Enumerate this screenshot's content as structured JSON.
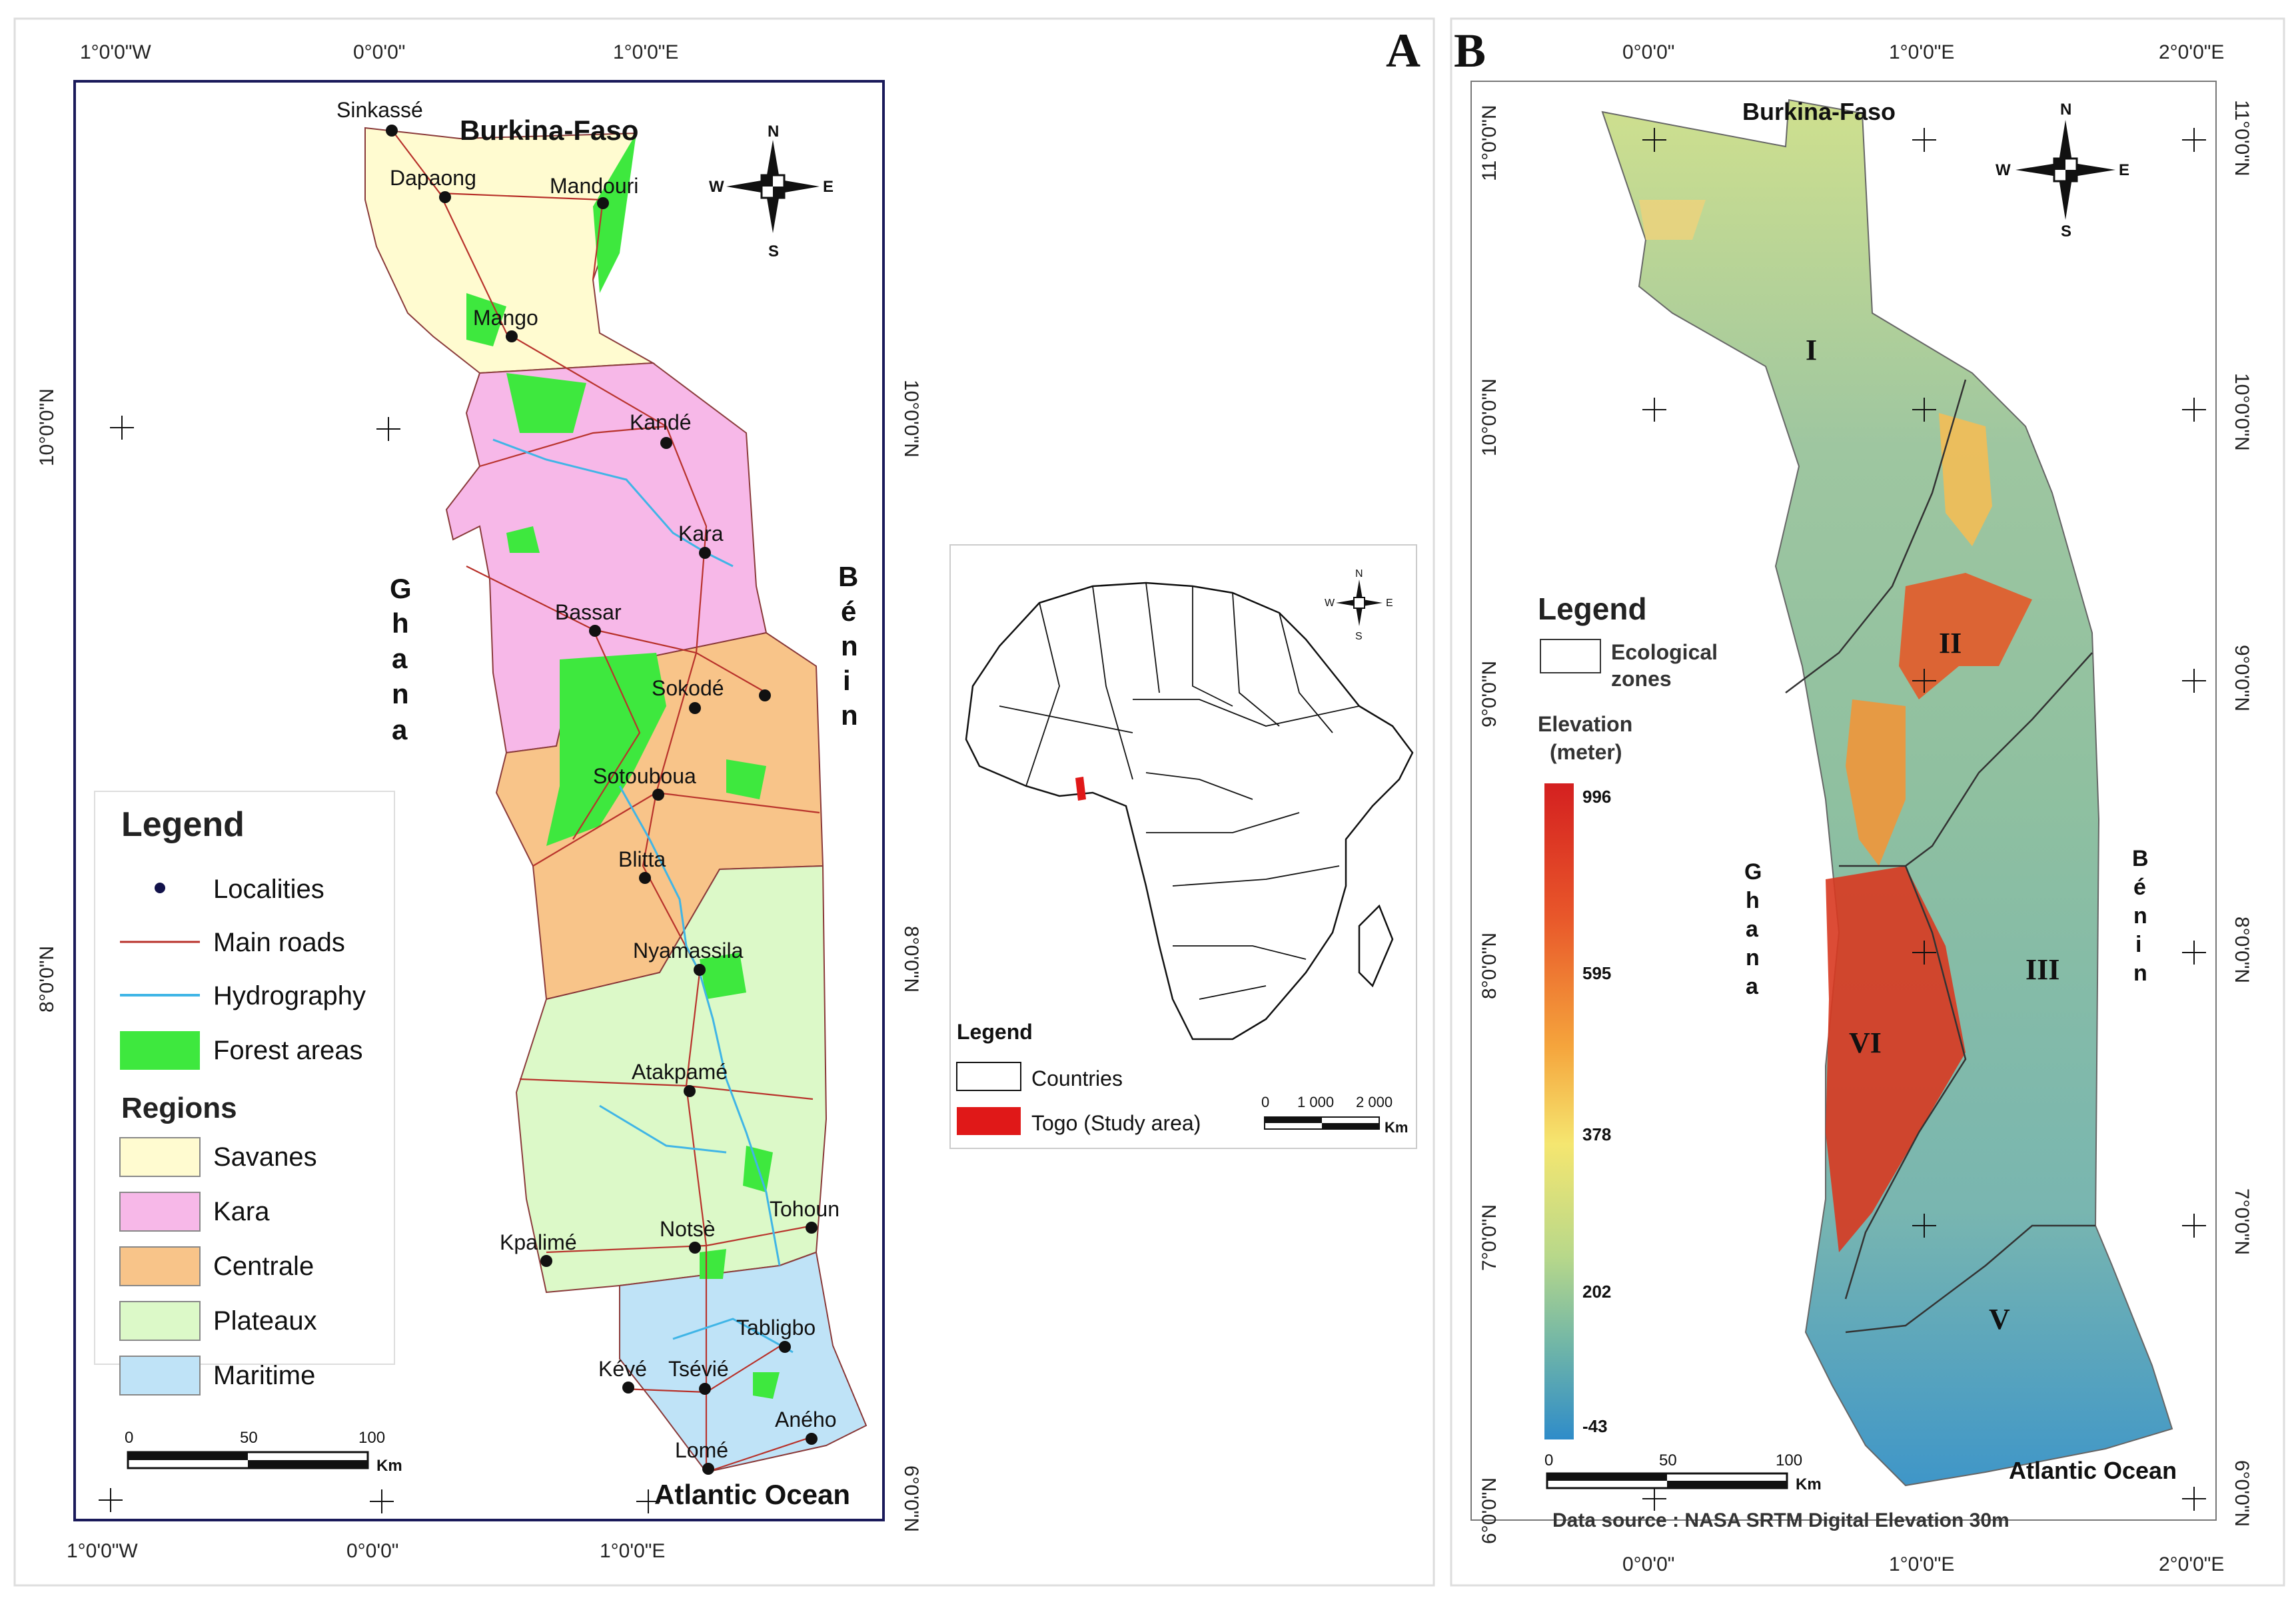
{
  "panels": {
    "a": "A",
    "b": "B"
  },
  "panel_a": {
    "top_coords": [
      "1°0'0\"W",
      "0°0'0\"",
      "1°0'0\"E"
    ],
    "bottom_coords": [
      "1°0'0\"W",
      "0°0'0\"",
      "1°0'0\"E"
    ],
    "left_coords": [
      "10°0'0\"N",
      "8°0'0\"N"
    ],
    "right_coords": [
      "10°0'0\"N",
      "8°0'0\"N",
      "6°0'0\"N"
    ],
    "countries": {
      "north": "Burkina-Faso",
      "west": [
        "G",
        "h",
        "a",
        "n",
        "a"
      ],
      "east": [
        "B",
        "é",
        "n",
        "i",
        "n"
      ],
      "south": "Atlantic Ocean"
    },
    "localities": [
      "Sinkassé",
      "Dapaong",
      "Mandouri",
      "Mango",
      "Kandé",
      "Kara",
      "Bassar",
      "Sokodé",
      "Sotouboua",
      "Blitta",
      "Nyamassila",
      "Atakpamé",
      "Tohoun",
      "Kpalimé",
      "Notsè",
      "Tabligbo",
      "Kévé",
      "Tsévié",
      "Aného",
      "Lomé"
    ],
    "compass": {
      "n": "N",
      "s": "S",
      "e": "E",
      "w": "W"
    },
    "legend": {
      "title": "Legend",
      "items": [
        "Localities",
        "Main roads",
        "Hydrography",
        "Forest areas"
      ],
      "regions_title": "Regions",
      "regions": [
        {
          "name": "Savanes",
          "color": "#fffbd0"
        },
        {
          "name": "Kara",
          "color": "#f7b8e8"
        },
        {
          "name": "Centrale",
          "color": "#f8c489"
        },
        {
          "name": "Plateaux",
          "color": "#dcf9c8"
        },
        {
          "name": "Maritime",
          "color": "#bfe3f7"
        }
      ]
    },
    "scale": {
      "ticks": [
        "0",
        "50",
        "100"
      ],
      "unit": "Km"
    }
  },
  "inset": {
    "legend_title": "Legend",
    "items": [
      "Countries",
      "Togo (Study area)"
    ],
    "scale": {
      "ticks": [
        "0",
        "1 000",
        "2 000"
      ],
      "unit": "Km"
    },
    "compass": {
      "n": "N",
      "s": "S",
      "e": "E",
      "w": "W"
    }
  },
  "panel_b": {
    "top_coords": [
      "0°0'0\"",
      "1°0'0\"E",
      "2°0'0\"E"
    ],
    "bottom_coords": [
      "0°0'0\"",
      "1°0'0\"E",
      "2°0'0\"E"
    ],
    "left_coords": [
      "11°0'0\"N",
      "10°0'0\"N",
      "9°0'0\"N",
      "8°0'0\"N",
      "7°0'0\"N",
      "6°0'0\"N"
    ],
    "right_coords": [
      "11°0'0\"N",
      "10°0'0\"N",
      "9°0'0\"N",
      "8°0'0\"N",
      "7°0'0\"N",
      "6°0'0\"N"
    ],
    "countries": {
      "north": "Burkina-Faso",
      "west": [
        "G",
        "h",
        "a",
        "n",
        "a"
      ],
      "east": [
        "B",
        "é",
        "n",
        "i",
        "n"
      ],
      "south": "Atlantic Ocean"
    },
    "zones": [
      "I",
      "II",
      "III",
      "V",
      "VI"
    ],
    "compass": {
      "n": "N",
      "s": "S",
      "e": "E",
      "w": "W"
    },
    "legend": {
      "title": "Legend",
      "zones_label": [
        "Ecological",
        "zones"
      ],
      "elev_title": [
        "Elevation",
        "(meter)"
      ],
      "ticks": [
        "996",
        "595",
        "378",
        "202",
        "-43"
      ]
    },
    "scale": {
      "ticks": [
        "0",
        "50",
        "100"
      ],
      "unit": "Km"
    },
    "source": "Data source : NASA SRTM Digital Elevation 30m"
  }
}
